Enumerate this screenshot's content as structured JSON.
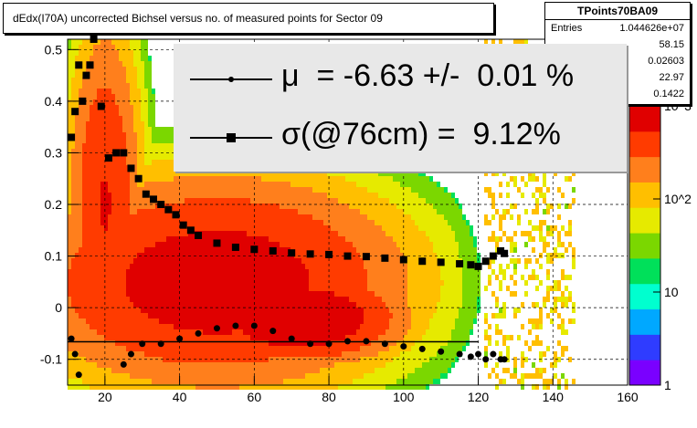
{
  "chart_data": {
    "type": "heatmap",
    "title": "dEdx(I70A) uncorrected Bichsel versus no. of measured points for Sector 09",
    "xlabel": "",
    "ylabel": "",
    "xlim": [
      10,
      160
    ],
    "ylim": [
      -0.15,
      0.52
    ],
    "x_ticks": [
      "20",
      "40",
      "60",
      "80",
      "100",
      "120",
      "140",
      "160"
    ],
    "y_ticks": [
      "-0.1",
      "0",
      "0.1",
      "0.2",
      "0.3",
      "0.4",
      "0.5"
    ],
    "grid": true,
    "z_scale": "log",
    "z_ticks": [
      "1",
      "10",
      "10^2",
      "10^3"
    ],
    "colors": {
      "sigma_marker": "#000000",
      "mu_marker": "#000000",
      "palette": [
        "#7a00ff",
        "#2f3cff",
        "#00a8ff",
        "#00ffcf",
        "#00e05a",
        "#7bd700",
        "#e6ea00",
        "#ffbf00",
        "#ff7f1c",
        "#ff3b00",
        "#e00000"
      ]
    },
    "series": [
      {
        "name": "sigma",
        "marker": "square",
        "x": [
          11,
          12,
          13,
          14,
          15,
          16,
          17,
          19,
          21,
          23,
          25,
          27,
          29,
          31,
          33,
          35,
          37,
          39,
          41,
          43,
          45,
          50,
          55,
          60,
          65,
          70,
          75,
          80,
          85,
          90,
          95,
          100,
          105,
          110,
          115,
          118,
          120,
          122,
          124,
          126,
          127
        ],
        "values": [
          0.33,
          0.38,
          0.47,
          0.4,
          0.45,
          0.47,
          0.52,
          0.39,
          0.29,
          0.3,
          0.3,
          0.27,
          0.25,
          0.22,
          0.21,
          0.2,
          0.19,
          0.18,
          0.16,
          0.15,
          0.14,
          0.125,
          0.117,
          0.113,
          0.11,
          0.106,
          0.104,
          0.103,
          0.1,
          0.099,
          0.096,
          0.093,
          0.09,
          0.088,
          0.085,
          0.083,
          0.08,
          0.09,
          0.1,
          0.11,
          0.105
        ]
      },
      {
        "name": "mu",
        "marker": "dot",
        "x": [
          11,
          12,
          13,
          25,
          27,
          30,
          35,
          40,
          45,
          50,
          55,
          60,
          65,
          70,
          75,
          80,
          85,
          90,
          95,
          100,
          105,
          110,
          115,
          118,
          120,
          122,
          124,
          126,
          127
        ],
        "values": [
          -0.06,
          -0.09,
          -0.13,
          -0.11,
          -0.09,
          -0.07,
          -0.07,
          -0.06,
          -0.05,
          -0.04,
          -0.035,
          -0.035,
          -0.045,
          -0.06,
          -0.07,
          -0.07,
          -0.065,
          -0.065,
          -0.07,
          -0.075,
          -0.08,
          -0.085,
          -0.09,
          -0.095,
          -0.09,
          -0.1,
          -0.09,
          -0.1,
          -0.1
        ]
      }
    ],
    "fit_line": {
      "x": [
        10,
        120
      ],
      "y": -0.066
    }
  },
  "stats": {
    "name": "TPoints70BA09",
    "entries_label": "Entries",
    "entries_value": "1.044626e+07",
    "values": [
      "58.15",
      "0.02603",
      "22.97",
      "0.1422"
    ]
  },
  "legend": {
    "entries": [
      {
        "text": "μ  = -6.63 +/-  0.01 %"
      },
      {
        "text": "σ(@76cm) =  9.12%"
      }
    ]
  }
}
